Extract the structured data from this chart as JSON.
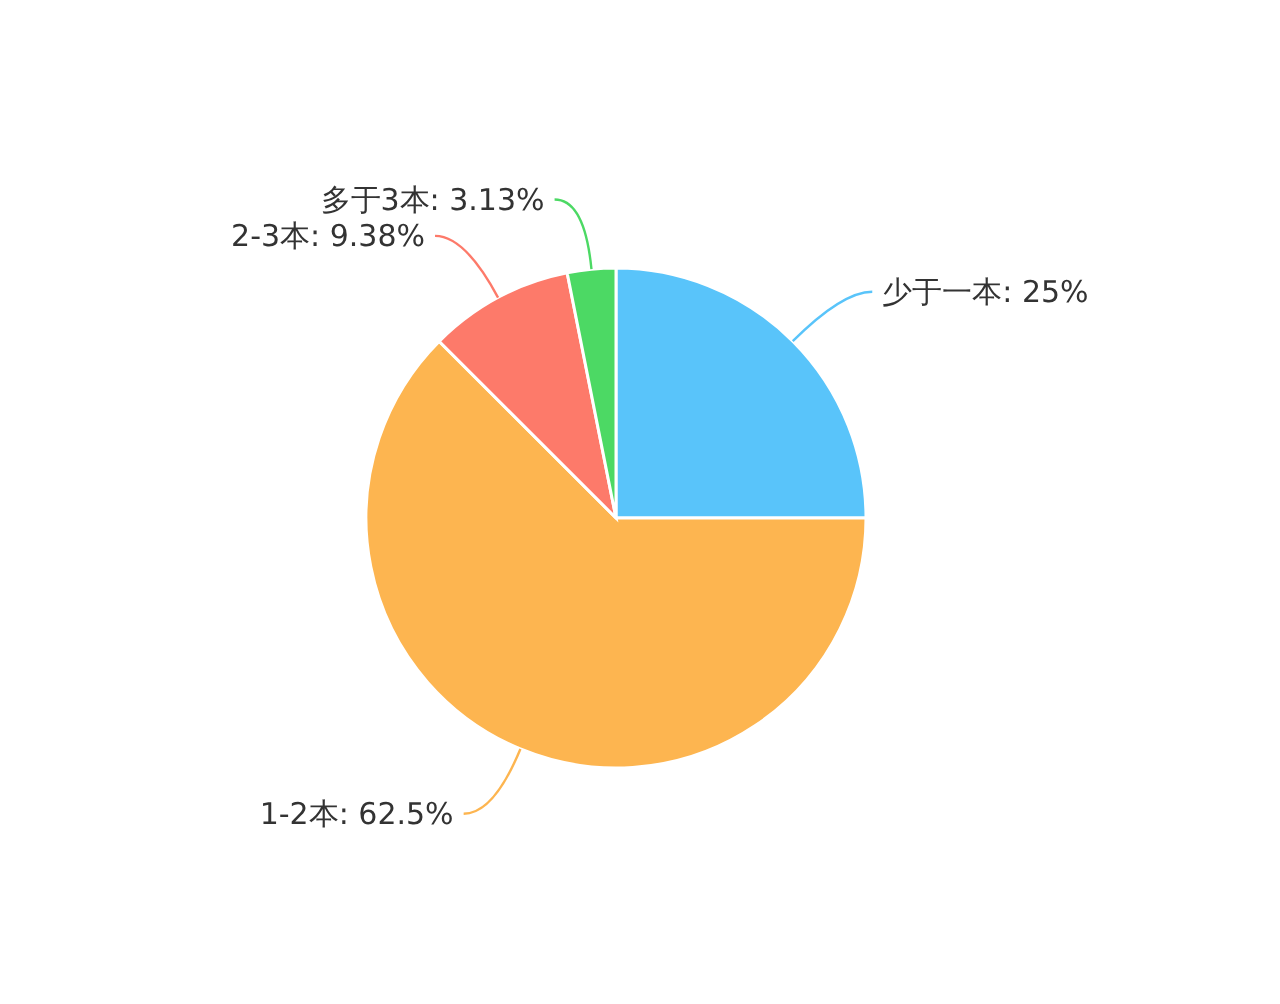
{
  "chart_data": {
    "type": "pie",
    "categories": [
      "少于一本",
      "1-2本",
      "2-3本",
      "多于3本"
    ],
    "values": [
      25,
      62.5,
      9.38,
      3.13
    ],
    "value_labels": [
      "25%",
      "62.5%",
      "9.38%",
      "3.13%"
    ],
    "colors": [
      "#59c4fa",
      "#fdb550",
      "#fd7a6a",
      "#4cd964"
    ],
    "legend": false
  }
}
